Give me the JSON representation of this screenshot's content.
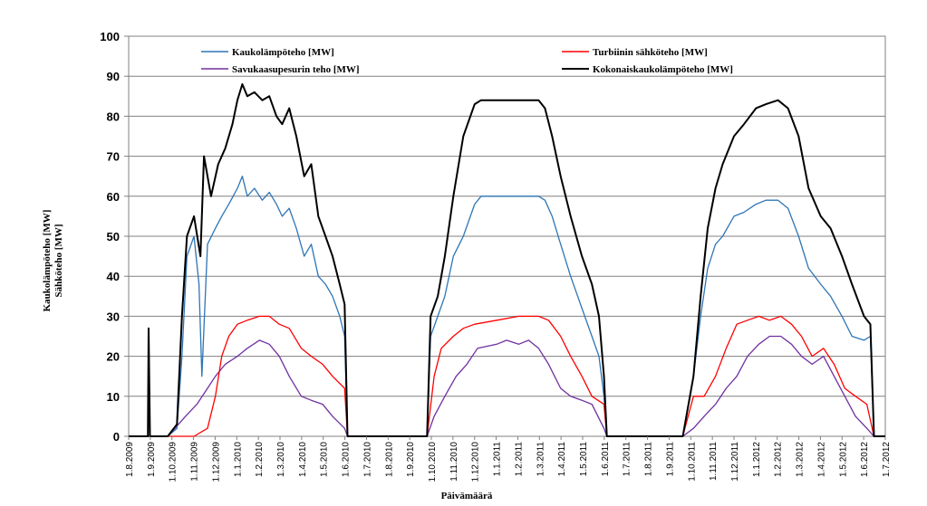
{
  "chart_data": {
    "type": "line",
    "xlabel": "Päivämäärä",
    "ylabel_lines": [
      "Kaukolämpöteho [MW]",
      "Sähköteho [MW]"
    ],
    "ylim": [
      0,
      100
    ],
    "yticks": [
      0,
      10,
      20,
      30,
      40,
      50,
      60,
      70,
      80,
      90,
      100
    ],
    "xlim": [
      "2009-08-01",
      "2012-07-01"
    ],
    "xtick_labels": [
      "1.8.2009",
      "1.9.2009",
      "1.10.2009",
      "1.11.2009",
      "1.12.2009",
      "1.1.2010",
      "1.2.2010",
      "1.3.2010",
      "1.4.2010",
      "1.5.2010",
      "1.6.2010",
      "1.7.2010",
      "1.8.2010",
      "1.9.2010",
      "1.10.2010",
      "1.11.2010",
      "1.12.2010",
      "1.1.2011",
      "1.2.2011",
      "1.3.2011",
      "1.4.2011",
      "1.5.2011",
      "1.6.2011",
      "1.7.2011",
      "1.8.2011",
      "1.9.2011",
      "1.10.2011",
      "1.11.2011",
      "1.12.2011",
      "1.1.2012",
      "1.2.2012",
      "1.3.2012",
      "1.4.2012",
      "1.5.2012",
      "1.6.2012",
      "1.7.2012"
    ],
    "grid": "horizontal",
    "legend": "top",
    "series": [
      {
        "name": "Kaukolämpöteho [MW]",
        "color": "#2e75b6",
        "points": [
          [
            "2009-08-01",
            0
          ],
          [
            "2009-09-05",
            0
          ],
          [
            "2009-09-25",
            0
          ],
          [
            "2009-10-08",
            2
          ],
          [
            "2009-10-15",
            20
          ],
          [
            "2009-10-22",
            45
          ],
          [
            "2009-11-01",
            50
          ],
          [
            "2009-11-08",
            38
          ],
          [
            "2009-11-12",
            15
          ],
          [
            "2009-11-20",
            48
          ],
          [
            "2009-12-01",
            52
          ],
          [
            "2009-12-10",
            55
          ],
          [
            "2009-12-20",
            58
          ],
          [
            "2010-01-01",
            62
          ],
          [
            "2010-01-08",
            65
          ],
          [
            "2010-01-15",
            60
          ],
          [
            "2010-01-25",
            62
          ],
          [
            "2010-02-05",
            59
          ],
          [
            "2010-02-15",
            61
          ],
          [
            "2010-02-25",
            58
          ],
          [
            "2010-03-05",
            55
          ],
          [
            "2010-03-15",
            57
          ],
          [
            "2010-03-25",
            52
          ],
          [
            "2010-04-05",
            45
          ],
          [
            "2010-04-15",
            48
          ],
          [
            "2010-04-25",
            40
          ],
          [
            "2010-05-05",
            38
          ],
          [
            "2010-05-15",
            35
          ],
          [
            "2010-05-25",
            30
          ],
          [
            "2010-06-01",
            25
          ],
          [
            "2010-06-05",
            0
          ],
          [
            "2010-09-25",
            0
          ],
          [
            "2010-09-30",
            25
          ],
          [
            "2010-10-10",
            30
          ],
          [
            "2010-10-20",
            35
          ],
          [
            "2010-11-01",
            45
          ],
          [
            "2010-11-15",
            50
          ],
          [
            "2010-12-01",
            58
          ],
          [
            "2010-12-10",
            60
          ],
          [
            "2011-01-01",
            60
          ],
          [
            "2011-02-01",
            60
          ],
          [
            "2011-03-01",
            60
          ],
          [
            "2011-03-10",
            59
          ],
          [
            "2011-03-20",
            55
          ],
          [
            "2011-04-01",
            48
          ],
          [
            "2011-04-15",
            40
          ],
          [
            "2011-05-01",
            32
          ],
          [
            "2011-05-15",
            25
          ],
          [
            "2011-05-25",
            20
          ],
          [
            "2011-06-01",
            10
          ],
          [
            "2011-06-05",
            0
          ],
          [
            "2011-09-20",
            0
          ],
          [
            "2011-10-05",
            15
          ],
          [
            "2011-10-15",
            30
          ],
          [
            "2011-10-25",
            42
          ],
          [
            "2011-11-05",
            48
          ],
          [
            "2011-11-15",
            50
          ],
          [
            "2011-12-01",
            55
          ],
          [
            "2011-12-15",
            56
          ],
          [
            "2012-01-01",
            58
          ],
          [
            "2012-01-15",
            59
          ],
          [
            "2012-02-01",
            59
          ],
          [
            "2012-02-15",
            57
          ],
          [
            "2012-03-01",
            50
          ],
          [
            "2012-03-15",
            42
          ],
          [
            "2012-04-01",
            38
          ],
          [
            "2012-04-15",
            35
          ],
          [
            "2012-05-01",
            30
          ],
          [
            "2012-05-15",
            25
          ],
          [
            "2012-06-01",
            24
          ],
          [
            "2012-06-10",
            25
          ],
          [
            "2012-06-15",
            0
          ],
          [
            "2012-07-01",
            0
          ]
        ]
      },
      {
        "name": "Savukaasupesurin teho [MW]",
        "color": "#7030a0",
        "points": [
          [
            "2009-08-01",
            0
          ],
          [
            "2009-09-25",
            0
          ],
          [
            "2009-10-05",
            2
          ],
          [
            "2009-10-20",
            5
          ],
          [
            "2009-11-05",
            8
          ],
          [
            "2009-11-20",
            12
          ],
          [
            "2009-12-01",
            15
          ],
          [
            "2009-12-15",
            18
          ],
          [
            "2010-01-01",
            20
          ],
          [
            "2010-01-15",
            22
          ],
          [
            "2010-02-01",
            24
          ],
          [
            "2010-02-15",
            23
          ],
          [
            "2010-03-01",
            20
          ],
          [
            "2010-03-15",
            15
          ],
          [
            "2010-04-01",
            10
          ],
          [
            "2010-04-15",
            9
          ],
          [
            "2010-05-01",
            8
          ],
          [
            "2010-05-15",
            5
          ],
          [
            "2010-06-01",
            2
          ],
          [
            "2010-06-05",
            0
          ],
          [
            "2010-09-25",
            0
          ],
          [
            "2010-10-05",
            5
          ],
          [
            "2010-10-20",
            10
          ],
          [
            "2010-11-05",
            15
          ],
          [
            "2010-11-20",
            18
          ],
          [
            "2010-12-05",
            22
          ],
          [
            "2011-01-01",
            23
          ],
          [
            "2011-01-15",
            24
          ],
          [
            "2011-02-01",
            23
          ],
          [
            "2011-02-15",
            24
          ],
          [
            "2011-03-01",
            22
          ],
          [
            "2011-03-15",
            18
          ],
          [
            "2011-04-01",
            12
          ],
          [
            "2011-04-15",
            10
          ],
          [
            "2011-05-01",
            9
          ],
          [
            "2011-05-15",
            8
          ],
          [
            "2011-06-01",
            2
          ],
          [
            "2011-06-05",
            0
          ],
          [
            "2011-09-20",
            0
          ],
          [
            "2011-10-05",
            2
          ],
          [
            "2011-10-20",
            5
          ],
          [
            "2011-11-05",
            8
          ],
          [
            "2011-11-20",
            12
          ],
          [
            "2011-12-05",
            15
          ],
          [
            "2011-12-20",
            20
          ],
          [
            "2012-01-05",
            23
          ],
          [
            "2012-01-20",
            25
          ],
          [
            "2012-02-05",
            25
          ],
          [
            "2012-02-20",
            23
          ],
          [
            "2012-03-05",
            20
          ],
          [
            "2012-03-20",
            18
          ],
          [
            "2012-04-05",
            20
          ],
          [
            "2012-04-20",
            15
          ],
          [
            "2012-05-05",
            10
          ],
          [
            "2012-05-20",
            5
          ],
          [
            "2012-06-05",
            2
          ],
          [
            "2012-06-15",
            0
          ],
          [
            "2012-07-01",
            0
          ]
        ]
      },
      {
        "name": "Turbiinin sähköteho [MW]",
        "color": "#ff0000",
        "points": [
          [
            "2009-08-01",
            0
          ],
          [
            "2009-11-01",
            0
          ],
          [
            "2009-11-20",
            2
          ],
          [
            "2009-12-01",
            10
          ],
          [
            "2009-12-10",
            20
          ],
          [
            "2009-12-20",
            25
          ],
          [
            "2010-01-01",
            28
          ],
          [
            "2010-01-15",
            29
          ],
          [
            "2010-02-01",
            30
          ],
          [
            "2010-02-15",
            30
          ],
          [
            "2010-03-01",
            28
          ],
          [
            "2010-03-15",
            27
          ],
          [
            "2010-04-01",
            22
          ],
          [
            "2010-04-15",
            20
          ],
          [
            "2010-05-01",
            18
          ],
          [
            "2010-05-15",
            15
          ],
          [
            "2010-06-01",
            12
          ],
          [
            "2010-06-05",
            0
          ],
          [
            "2010-09-25",
            0
          ],
          [
            "2010-10-05",
            15
          ],
          [
            "2010-10-15",
            22
          ],
          [
            "2010-11-01",
            25
          ],
          [
            "2010-11-15",
            27
          ],
          [
            "2010-12-01",
            28
          ],
          [
            "2011-01-01",
            29
          ],
          [
            "2011-02-01",
            30
          ],
          [
            "2011-03-01",
            30
          ],
          [
            "2011-03-15",
            29
          ],
          [
            "2011-04-01",
            25
          ],
          [
            "2011-04-15",
            20
          ],
          [
            "2011-05-01",
            15
          ],
          [
            "2011-05-15",
            10
          ],
          [
            "2011-06-01",
            8
          ],
          [
            "2011-06-05",
            0
          ],
          [
            "2011-09-20",
            0
          ],
          [
            "2011-10-05",
            10
          ],
          [
            "2011-10-20",
            10
          ],
          [
            "2011-11-05",
            15
          ],
          [
            "2011-11-20",
            22
          ],
          [
            "2011-12-05",
            28
          ],
          [
            "2011-12-20",
            29
          ],
          [
            "2012-01-05",
            30
          ],
          [
            "2012-01-20",
            29
          ],
          [
            "2012-02-05",
            30
          ],
          [
            "2012-02-20",
            28
          ],
          [
            "2012-03-05",
            25
          ],
          [
            "2012-03-20",
            20
          ],
          [
            "2012-04-05",
            22
          ],
          [
            "2012-04-20",
            18
          ],
          [
            "2012-05-05",
            12
          ],
          [
            "2012-05-20",
            10
          ],
          [
            "2012-06-05",
            8
          ],
          [
            "2012-06-15",
            0
          ],
          [
            "2012-07-01",
            0
          ]
        ]
      },
      {
        "name": "Kokonaiskaukolämpöteho [MW]",
        "color": "#000000",
        "points": [
          [
            "2009-08-01",
            0
          ],
          [
            "2009-08-28",
            0
          ],
          [
            "2009-08-29",
            27
          ],
          [
            "2009-08-31",
            0
          ],
          [
            "2009-09-25",
            0
          ],
          [
            "2009-10-08",
            3
          ],
          [
            "2009-10-15",
            30
          ],
          [
            "2009-10-22",
            50
          ],
          [
            "2009-11-01",
            55
          ],
          [
            "2009-11-10",
            45
          ],
          [
            "2009-11-15",
            70
          ],
          [
            "2009-11-25",
            60
          ],
          [
            "2009-12-05",
            68
          ],
          [
            "2009-12-15",
            72
          ],
          [
            "2009-12-25",
            78
          ],
          [
            "2010-01-01",
            84
          ],
          [
            "2010-01-08",
            88
          ],
          [
            "2010-01-15",
            85
          ],
          [
            "2010-01-25",
            86
          ],
          [
            "2010-02-05",
            84
          ],
          [
            "2010-02-15",
            85
          ],
          [
            "2010-02-25",
            80
          ],
          [
            "2010-03-05",
            78
          ],
          [
            "2010-03-15",
            82
          ],
          [
            "2010-03-25",
            75
          ],
          [
            "2010-04-05",
            65
          ],
          [
            "2010-04-15",
            68
          ],
          [
            "2010-04-25",
            55
          ],
          [
            "2010-05-05",
            50
          ],
          [
            "2010-05-15",
            45
          ],
          [
            "2010-05-25",
            38
          ],
          [
            "2010-06-01",
            33
          ],
          [
            "2010-06-05",
            0
          ],
          [
            "2010-09-25",
            0
          ],
          [
            "2010-09-30",
            30
          ],
          [
            "2010-10-10",
            35
          ],
          [
            "2010-10-20",
            45
          ],
          [
            "2010-11-01",
            60
          ],
          [
            "2010-11-15",
            75
          ],
          [
            "2010-12-01",
            83
          ],
          [
            "2010-12-10",
            84
          ],
          [
            "2011-01-01",
            84
          ],
          [
            "2011-02-01",
            84
          ],
          [
            "2011-03-01",
            84
          ],
          [
            "2011-03-10",
            82
          ],
          [
            "2011-03-20",
            75
          ],
          [
            "2011-04-01",
            65
          ],
          [
            "2011-04-15",
            55
          ],
          [
            "2011-05-01",
            45
          ],
          [
            "2011-05-15",
            38
          ],
          [
            "2011-05-25",
            30
          ],
          [
            "2011-06-01",
            15
          ],
          [
            "2011-06-05",
            0
          ],
          [
            "2011-09-20",
            0
          ],
          [
            "2011-10-05",
            15
          ],
          [
            "2011-10-15",
            35
          ],
          [
            "2011-10-25",
            52
          ],
          [
            "2011-11-05",
            62
          ],
          [
            "2011-11-15",
            68
          ],
          [
            "2011-12-01",
            75
          ],
          [
            "2011-12-15",
            78
          ],
          [
            "2012-01-01",
            82
          ],
          [
            "2012-01-15",
            83
          ],
          [
            "2012-02-01",
            84
          ],
          [
            "2012-02-15",
            82
          ],
          [
            "2012-03-01",
            75
          ],
          [
            "2012-03-15",
            62
          ],
          [
            "2012-04-01",
            55
          ],
          [
            "2012-04-15",
            52
          ],
          [
            "2012-05-01",
            45
          ],
          [
            "2012-05-15",
            38
          ],
          [
            "2012-06-01",
            30
          ],
          [
            "2012-06-10",
            28
          ],
          [
            "2012-06-15",
            0
          ],
          [
            "2012-07-01",
            0
          ]
        ]
      }
    ]
  }
}
